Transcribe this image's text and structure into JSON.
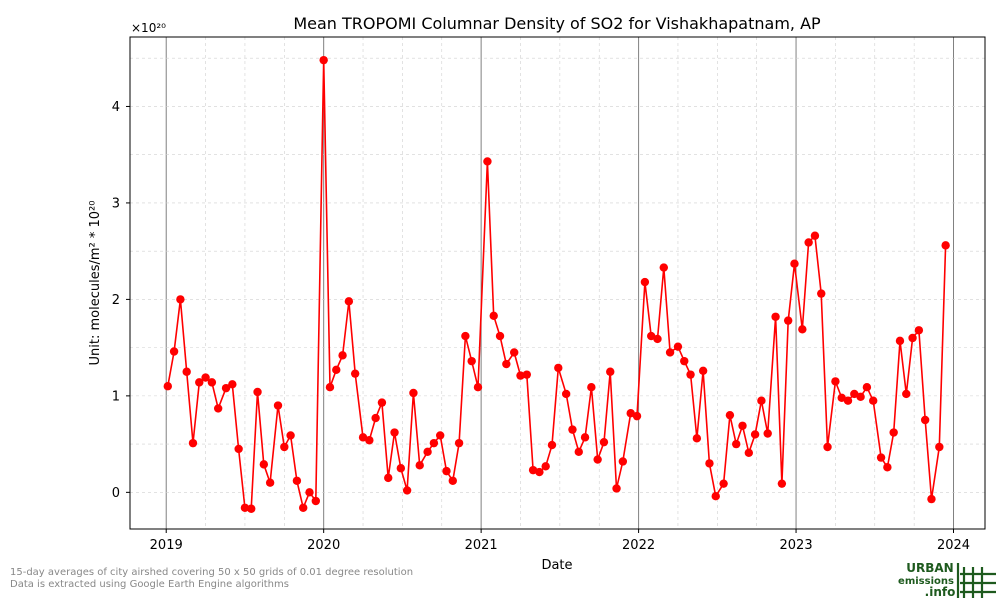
{
  "chart_data": {
    "type": "line",
    "title": "Mean TROPOMI Columnar Density of SO2 for Vishakhapatnam, AP",
    "xlabel": "Date",
    "ylabel": "Unit: molecules/m² * 10²⁰",
    "y_multiplier": "×10²⁰",
    "xlim": [
      2018.77,
      2024.2
    ],
    "ylim": [
      -0.38,
      4.72
    ],
    "x_ticks": [
      2019,
      2020,
      2021,
      2022,
      2023,
      2024
    ],
    "x_tick_labels": [
      "2019",
      "2020",
      "2021",
      "2022",
      "2023",
      "2024"
    ],
    "y_ticks": [
      0,
      1,
      2,
      3,
      4
    ],
    "y_tick_labels": [
      "0",
      "1",
      "2",
      "3",
      "4"
    ],
    "grid": true,
    "series": [
      {
        "color": "#ff0000",
        "points": [
          [
            2019.01,
            1.1
          ],
          [
            2019.05,
            1.46
          ],
          [
            2019.09,
            2.0
          ],
          [
            2019.13,
            1.25
          ],
          [
            2019.17,
            0.51
          ],
          [
            2019.21,
            1.14
          ],
          [
            2019.25,
            1.19
          ],
          [
            2019.29,
            1.14
          ],
          [
            2019.33,
            0.87
          ],
          [
            2019.38,
            1.08
          ],
          [
            2019.42,
            1.12
          ],
          [
            2019.46,
            0.45
          ],
          [
            2019.5,
            -0.16
          ],
          [
            2019.54,
            -0.17
          ],
          [
            2019.58,
            1.04
          ],
          [
            2019.62,
            0.29
          ],
          [
            2019.66,
            0.1
          ],
          [
            2019.71,
            0.9
          ],
          [
            2019.75,
            0.47
          ],
          [
            2019.79,
            0.59
          ],
          [
            2019.83,
            0.12
          ],
          [
            2019.87,
            -0.16
          ],
          [
            2019.91,
            0.0
          ],
          [
            2019.95,
            -0.09
          ],
          [
            2020.0,
            4.48
          ],
          [
            2020.04,
            1.09
          ],
          [
            2020.08,
            1.27
          ],
          [
            2020.12,
            1.42
          ],
          [
            2020.16,
            1.98
          ],
          [
            2020.2,
            1.23
          ],
          [
            2020.25,
            0.57
          ],
          [
            2020.29,
            0.54
          ],
          [
            2020.33,
            0.77
          ],
          [
            2020.37,
            0.93
          ],
          [
            2020.41,
            0.15
          ],
          [
            2020.45,
            0.62
          ],
          [
            2020.49,
            0.25
          ],
          [
            2020.53,
            0.02
          ],
          [
            2020.57,
            1.03
          ],
          [
            2020.61,
            0.28
          ],
          [
            2020.66,
            0.42
          ],
          [
            2020.7,
            0.51
          ],
          [
            2020.74,
            0.59
          ],
          [
            2020.78,
            0.22
          ],
          [
            2020.82,
            0.12
          ],
          [
            2020.86,
            0.51
          ],
          [
            2020.9,
            1.62
          ],
          [
            2020.94,
            1.36
          ],
          [
            2020.98,
            1.09
          ],
          [
            2021.04,
            3.43
          ],
          [
            2021.08,
            1.83
          ],
          [
            2021.12,
            1.62
          ],
          [
            2021.16,
            1.33
          ],
          [
            2021.21,
            1.45
          ],
          [
            2021.25,
            1.21
          ],
          [
            2021.29,
            1.22
          ],
          [
            2021.33,
            0.23
          ],
          [
            2021.37,
            0.21
          ],
          [
            2021.41,
            0.27
          ],
          [
            2021.45,
            0.49
          ],
          [
            2021.49,
            1.29
          ],
          [
            2021.54,
            1.02
          ],
          [
            2021.58,
            0.65
          ],
          [
            2021.62,
            0.42
          ],
          [
            2021.66,
            0.57
          ],
          [
            2021.7,
            1.09
          ],
          [
            2021.74,
            0.34
          ],
          [
            2021.78,
            0.52
          ],
          [
            2021.82,
            1.25
          ],
          [
            2021.86,
            0.04
          ],
          [
            2021.9,
            0.32
          ],
          [
            2021.95,
            0.82
          ],
          [
            2021.99,
            0.79
          ],
          [
            2022.04,
            2.18
          ],
          [
            2022.08,
            1.62
          ],
          [
            2022.12,
            1.59
          ],
          [
            2022.16,
            2.33
          ],
          [
            2022.2,
            1.45
          ],
          [
            2022.25,
            1.51
          ],
          [
            2022.29,
            1.36
          ],
          [
            2022.33,
            1.22
          ],
          [
            2022.37,
            0.56
          ],
          [
            2022.41,
            1.26
          ],
          [
            2022.45,
            0.3
          ],
          [
            2022.49,
            -0.04
          ],
          [
            2022.54,
            0.09
          ],
          [
            2022.58,
            0.8
          ],
          [
            2022.62,
            0.5
          ],
          [
            2022.66,
            0.69
          ],
          [
            2022.7,
            0.41
          ],
          [
            2022.74,
            0.6
          ],
          [
            2022.78,
            0.95
          ],
          [
            2022.82,
            0.61
          ],
          [
            2022.87,
            1.82
          ],
          [
            2022.91,
            0.09
          ],
          [
            2022.95,
            1.78
          ],
          [
            2022.99,
            2.37
          ],
          [
            2023.04,
            1.69
          ],
          [
            2023.08,
            2.59
          ],
          [
            2023.12,
            2.66
          ],
          [
            2023.16,
            2.06
          ],
          [
            2023.2,
            0.47
          ],
          [
            2023.25,
            1.15
          ],
          [
            2023.29,
            0.98
          ],
          [
            2023.33,
            0.95
          ],
          [
            2023.37,
            1.02
          ],
          [
            2023.41,
            0.99
          ],
          [
            2023.45,
            1.09
          ],
          [
            2023.49,
            0.95
          ],
          [
            2023.54,
            0.36
          ],
          [
            2023.58,
            0.26
          ],
          [
            2023.62,
            0.62
          ],
          [
            2023.66,
            1.57
          ],
          [
            2023.7,
            1.02
          ],
          [
            2023.74,
            1.6
          ],
          [
            2023.78,
            1.68
          ],
          [
            2023.82,
            0.75
          ],
          [
            2023.86,
            -0.07
          ],
          [
            2023.91,
            0.47
          ],
          [
            2023.95,
            2.56
          ]
        ]
      }
    ]
  },
  "footnote": {
    "line1": "15-day averages of city airshed covering 50 x 50 grids of 0.01 degree resolution",
    "line2": "Data is extracted using Google Earth Engine algorithms"
  },
  "logo": {
    "line1": "URBAN",
    "line2": "emissions",
    "line3": ".info",
    "color": "#1e5a1e"
  }
}
